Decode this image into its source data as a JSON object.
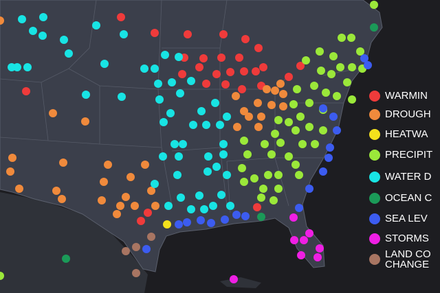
{
  "legend": [
    {
      "label": "WARMIN",
      "color": "#ef3b3b"
    },
    {
      "label": "DROUGH",
      "color": "#f08a3c"
    },
    {
      "label": "HEATWA",
      "color": "#f4e11c"
    },
    {
      "label": "PRECIPIT",
      "color": "#9be83a"
    },
    {
      "label": "WATER D",
      "color": "#18e4e4"
    },
    {
      "label": "OCEAN C",
      "color": "#1b9a58"
    },
    {
      "label": "SEA LEV",
      "color": "#3c5cf0"
    },
    {
      "label": "STORMS",
      "color": "#ef1fe4"
    },
    {
      "label": "LAND CO\nCHANGE",
      "color": "#a87562"
    }
  ]
}
